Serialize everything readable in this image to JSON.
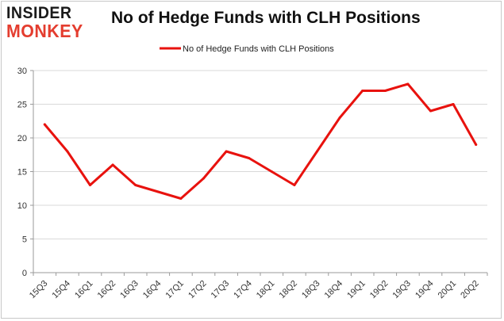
{
  "logo": {
    "line1": "INSIDER",
    "line2": "MONKEY"
  },
  "chart_data": {
    "type": "line",
    "title": "No of Hedge Funds with CLH Positions",
    "xlabel": "",
    "ylabel": "",
    "categories": [
      "15Q3",
      "15Q4",
      "16Q1",
      "16Q2",
      "16Q3",
      "16Q4",
      "17Q1",
      "17Q2",
      "17Q3",
      "17Q4",
      "18Q1",
      "18Q2",
      "18Q3",
      "18Q4",
      "19Q1",
      "19Q2",
      "19Q3",
      "19Q4",
      "20Q1",
      "20Q2"
    ],
    "series": [
      {
        "name": "No of Hedge Funds with CLH Positions",
        "values": [
          22,
          18,
          13,
          16,
          13,
          12,
          11,
          14,
          18,
          17,
          15,
          13,
          18,
          23,
          27,
          27,
          28,
          24,
          25,
          19
        ],
        "color": "#e8120e"
      }
    ],
    "ylim": [
      0,
      30
    ],
    "yticks": [
      0,
      5,
      10,
      15,
      20,
      25,
      30
    ],
    "grid": true,
    "legend": "top-center"
  }
}
